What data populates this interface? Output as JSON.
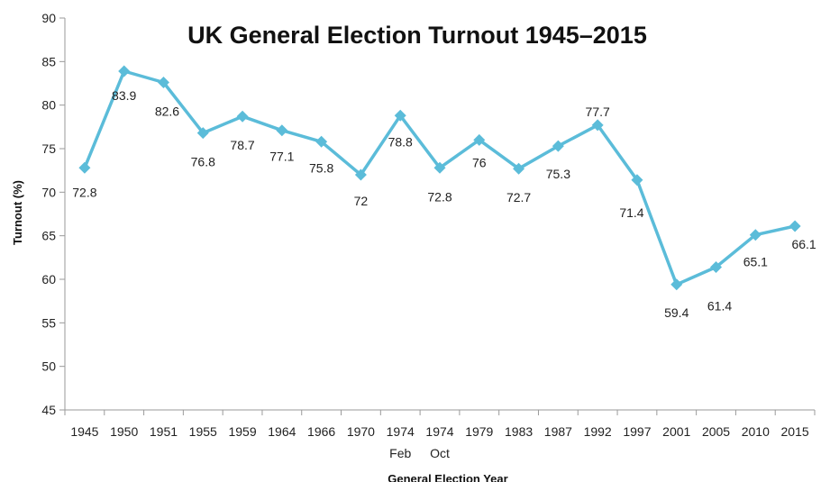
{
  "chart_data": {
    "type": "line",
    "title": "UK General Election Turnout 1945–2015",
    "xlabel": "General Election Year",
    "ylabel": "Turnout (%)",
    "ylim": [
      45,
      90
    ],
    "yticks": [
      "45",
      "50",
      "55",
      "60",
      "65",
      "70",
      "75",
      "80",
      "85",
      "90"
    ],
    "categories": [
      "1945",
      "1950",
      "1951",
      "1955",
      "1959",
      "1964",
      "1966",
      "1970",
      "1974",
      "1974",
      "1979",
      "1983",
      "1987",
      "1992",
      "1997",
      "2001",
      "2005",
      "2010",
      "2015"
    ],
    "category_sublabels": [
      "",
      "",
      "",
      "",
      "",
      "",
      "",
      "",
      "Feb",
      "Oct",
      "",
      "",
      "",
      "",
      "",
      "",
      "",
      "",
      ""
    ],
    "series": [
      {
        "values": [
          72.8,
          83.9,
          82.6,
          76.8,
          78.7,
          77.1,
          75.8,
          72,
          78.8,
          72.8,
          76,
          72.7,
          75.3,
          77.7,
          71.4,
          59.4,
          61.4,
          65.1,
          66.1
        ],
        "color": "#5bbcd9",
        "marker": "diamond"
      }
    ],
    "data_labels": [
      "72.8",
      "83.9",
      "82.6",
      "76.8",
      "78.7",
      "77.1",
      "75.8",
      "72",
      "78.8",
      "72.8",
      "76",
      "72.7",
      "75.3",
      "77.7",
      "71.4",
      "59.4",
      "61.4",
      "65.1",
      "66.1"
    ],
    "grid": false,
    "legend": "none"
  }
}
